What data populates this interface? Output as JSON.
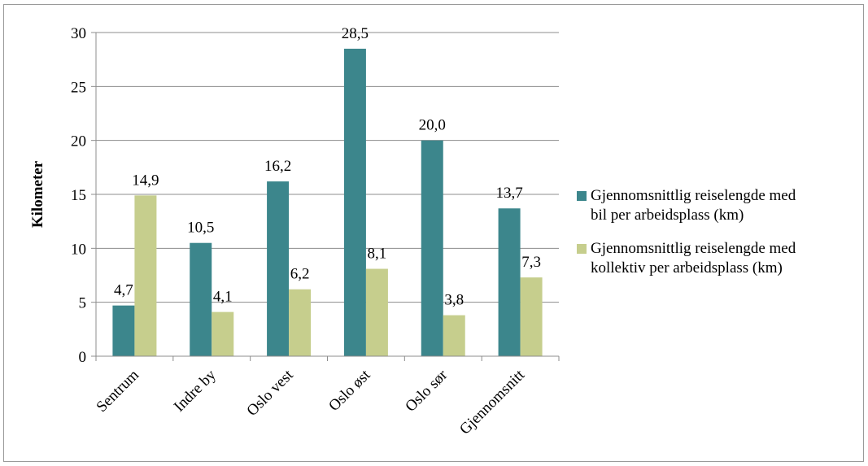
{
  "chart_data": {
    "type": "bar",
    "title": "",
    "xlabel": "",
    "ylabel": "Kilometer",
    "ylim": [
      0,
      30
    ],
    "yticks": [
      0,
      5,
      10,
      15,
      20,
      25,
      30
    ],
    "grid": true,
    "legend_position": "right",
    "categories": [
      "Sentrum",
      "Indre by",
      "Oslo vest",
      "Oslo øst",
      "Oslo sør",
      "Gjennomsnitt"
    ],
    "series": [
      {
        "name": "Gjennomsnittlig reiselengde med bil per arbeidsplass (km)",
        "legend_lines": [
          "Gjennomsnittlig reiselengde med",
          "bil per arbeidsplass (km)"
        ],
        "color": "#3c868c",
        "values": [
          4.7,
          10.5,
          16.2,
          28.5,
          20.0,
          13.7
        ],
        "labels": [
          "4,7",
          "10,5",
          "16,2",
          "28,5",
          "20,0",
          "13,7"
        ]
      },
      {
        "name": "Gjennomsnittlig reiselengde med kollektiv per arbeidsplass (km)",
        "legend_lines": [
          "Gjennomsnittlig reiselengde med",
          "kollektiv per arbeidsplass (km)"
        ],
        "color": "#c6ce8d",
        "values": [
          14.9,
          4.1,
          6.2,
          8.1,
          3.8,
          7.3
        ],
        "labels": [
          "14,9",
          "4,1",
          "6,2",
          "8,1",
          "3,8",
          "7,3"
        ]
      }
    ]
  }
}
